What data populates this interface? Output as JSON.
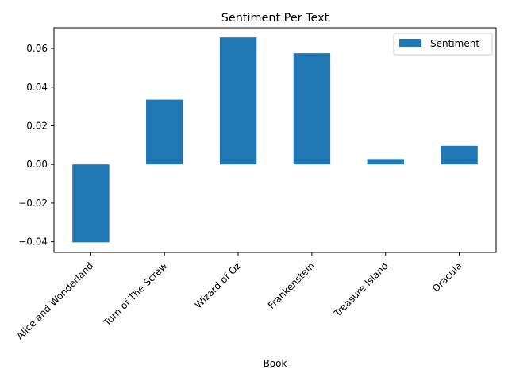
{
  "chart_data": {
    "type": "bar",
    "title": "Sentiment Per Text",
    "xlabel": "Book",
    "ylabel": "",
    "categories": [
      "Alice and Wonderland",
      "Turn of The Screw",
      "Wizard of Oz",
      "Frankenstein",
      "Treasure Island",
      "Dracula"
    ],
    "series": [
      {
        "name": "Sentiment",
        "values": [
          -0.0403,
          0.0335,
          0.0657,
          0.0575,
          0.0028,
          0.0096
        ],
        "color": "#1f77b4"
      }
    ],
    "ylim": [
      -0.0455,
      0.0707
    ],
    "yticks": [
      -0.04,
      -0.02,
      0.0,
      0.02,
      0.04,
      0.06
    ],
    "ytick_labels": [
      "−0.04",
      "−0.02",
      "0.00",
      "0.02",
      "0.04",
      "0.06"
    ],
    "grid": false,
    "legend_position": "top-right"
  }
}
